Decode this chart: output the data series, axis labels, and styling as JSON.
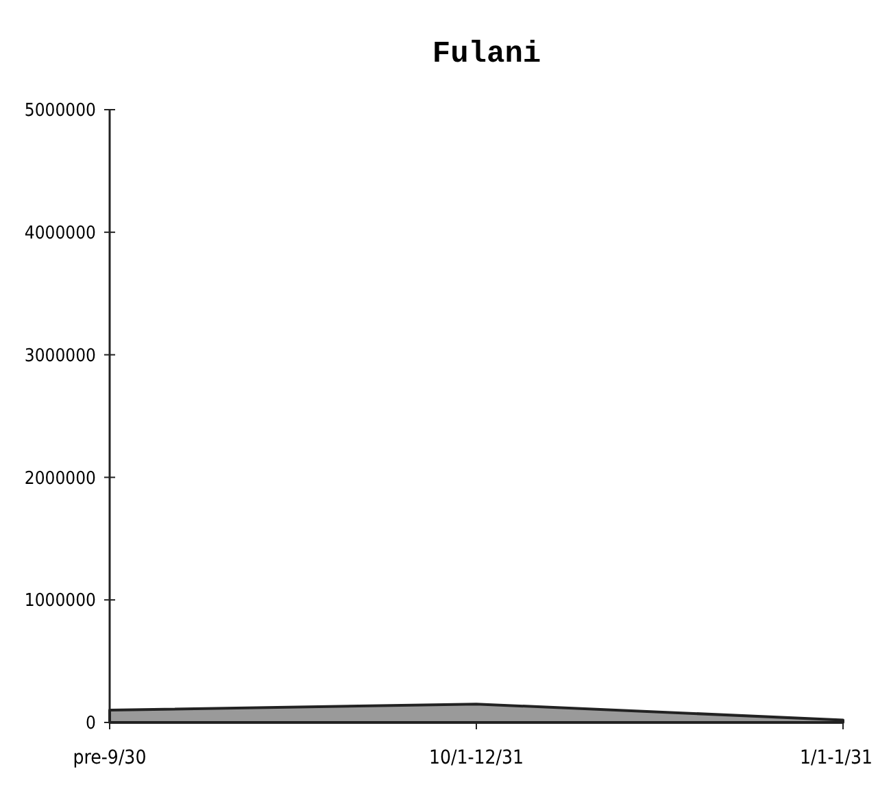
{
  "chart_data": {
    "type": "area",
    "title": "Fulani",
    "categories": [
      "pre-9/30",
      "10/1-12/31",
      "1/1-1/31"
    ],
    "series": [
      {
        "color": "#9a9a9a",
        "values": [
          100000,
          150000,
          20000
        ]
      }
    ],
    "ylim": [
      0,
      5000000
    ],
    "yticks": [
      0,
      1000000,
      2000000,
      3000000,
      4000000,
      5000000
    ],
    "grid": false
  }
}
